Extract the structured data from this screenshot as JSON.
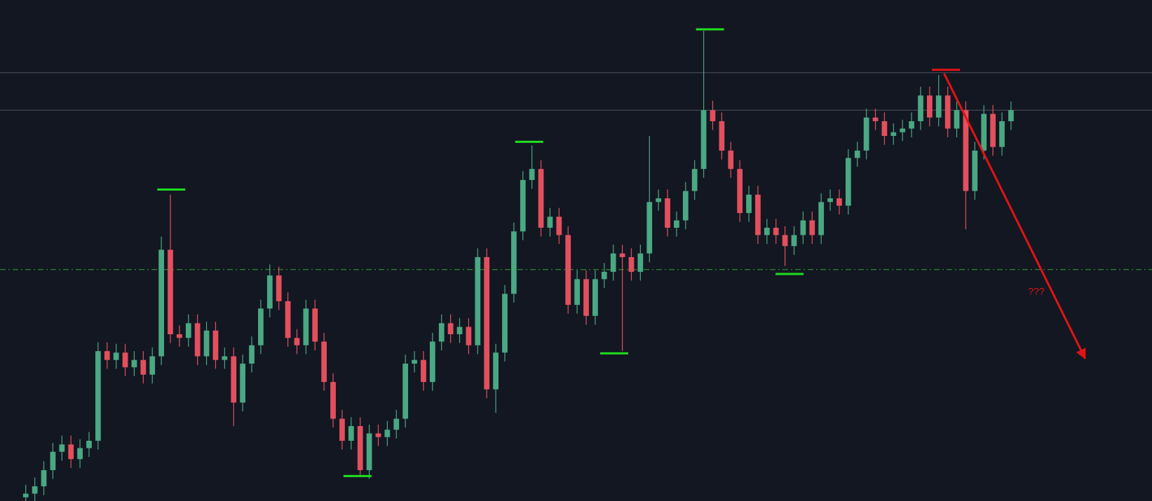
{
  "chart_data": {
    "type": "candlestick",
    "background": "#131722",
    "up_color": "#4aa883",
    "down_color": "#e2505e",
    "xlim": [
      -2.85,
      124.6
    ],
    "ylim": [
      0,
      682
    ],
    "open": [
      5,
      10,
      20,
      42,
      67,
      77,
      57,
      72,
      82,
      204,
      192,
      202,
      182,
      192,
      172,
      197,
      342,
      227,
      222,
      242,
      197,
      232,
      192,
      197,
      134,
      187,
      212,
      262,
      307,
      272,
      222,
      212,
      262,
      217,
      162,
      112,
      82,
      102,
      42,
      92,
      87,
      97,
      112,
      187,
      192,
      162,
      217,
      242,
      227,
      237,
      212,
      332,
      152,
      202,
      282,
      367,
      437,
      452,
      372,
      387,
      362,
      267,
      302,
      252,
      302,
      312,
      337,
      332,
      312,
      337,
      407,
      412,
      372,
      382,
      422,
      452,
      532,
      517,
      477,
      452,
      392,
      417,
      362,
      372,
      362,
      347,
      362,
      382,
      362,
      407,
      412,
      402,
      467,
      477,
      522,
      517,
      497,
      502,
      507,
      517,
      552,
      522,
      552,
      507,
      532,
      422,
      477,
      527,
      482,
      517
    ],
    "high": [
      22,
      32,
      54,
      79,
      89,
      89,
      84,
      94,
      216,
      216,
      214,
      214,
      204,
      204,
      209,
      360,
      417,
      239,
      254,
      254,
      244,
      244,
      209,
      209,
      199,
      224,
      274,
      322,
      319,
      284,
      234,
      274,
      274,
      229,
      174,
      124,
      114,
      114,
      104,
      104,
      109,
      124,
      199,
      204,
      204,
      229,
      254,
      254,
      249,
      249,
      344,
      344,
      214,
      294,
      379,
      449,
      484,
      464,
      399,
      399,
      374,
      314,
      314,
      314,
      324,
      349,
      349,
      344,
      349,
      497,
      424,
      424,
      394,
      434,
      464,
      640,
      545,
      529,
      489,
      464,
      429,
      429,
      384,
      384,
      374,
      374,
      394,
      394,
      419,
      424,
      424,
      479,
      489,
      534,
      534,
      529,
      514,
      519,
      529,
      564,
      564,
      580,
      564,
      544,
      544,
      489,
      539,
      539,
      529,
      544
    ],
    "low": [
      0,
      0,
      8,
      30,
      55,
      45,
      45,
      60,
      70,
      180,
      180,
      170,
      170,
      160,
      160,
      185,
      215,
      210,
      210,
      185,
      185,
      180,
      180,
      102,
      122,
      175,
      200,
      250,
      260,
      210,
      200,
      200,
      205,
      150,
      100,
      70,
      70,
      34,
      30,
      75,
      75,
      85,
      100,
      175,
      150,
      150,
      205,
      215,
      215,
      200,
      200,
      140,
      120,
      190,
      270,
      355,
      425,
      360,
      360,
      350,
      255,
      255,
      240,
      240,
      290,
      300,
      204,
      300,
      300,
      325,
      395,
      360,
      360,
      370,
      410,
      440,
      505,
      465,
      440,
      380,
      380,
      350,
      350,
      350,
      320,
      335,
      350,
      350,
      350,
      395,
      390,
      390,
      455,
      465,
      505,
      485,
      485,
      490,
      495,
      505,
      510,
      510,
      495,
      495,
      370,
      410,
      465,
      470,
      470,
      505
    ],
    "close": [
      10,
      20,
      42,
      67,
      77,
      57,
      72,
      82,
      204,
      192,
      202,
      182,
      192,
      172,
      197,
      342,
      227,
      222,
      242,
      197,
      232,
      192,
      197,
      134,
      187,
      212,
      262,
      307,
      272,
      222,
      212,
      262,
      217,
      162,
      112,
      82,
      102,
      42,
      92,
      87,
      97,
      112,
      187,
      192,
      162,
      217,
      242,
      227,
      237,
      212,
      332,
      152,
      202,
      282,
      367,
      437,
      452,
      372,
      387,
      362,
      267,
      302,
      252,
      302,
      312,
      337,
      332,
      312,
      337,
      407,
      412,
      372,
      382,
      422,
      452,
      532,
      517,
      477,
      452,
      392,
      417,
      362,
      372,
      362,
      347,
      362,
      382,
      362,
      407,
      412,
      402,
      467,
      477,
      522,
      517,
      497,
      502,
      507,
      517,
      552,
      522,
      552,
      507,
      532,
      422,
      477,
      527,
      482,
      517,
      532
    ],
    "levels": [
      {
        "value": 583,
        "color": "#50535e",
        "style": "solid"
      },
      {
        "value": 532,
        "color": "#50535e",
        "style": "solid"
      },
      {
        "value": 315,
        "color": "#2fa52f",
        "style": "dash-dot"
      }
    ],
    "markers": [
      {
        "x": 16.1,
        "value": 424,
        "color": "#1fe01f"
      },
      {
        "x": 36.7,
        "value": 34,
        "color": "#1fe01f"
      },
      {
        "x": 55.7,
        "value": 489,
        "color": "#1fe01f"
      },
      {
        "x": 65.1,
        "value": 201,
        "color": "#1fe01f"
      },
      {
        "x": 75.7,
        "value": 642,
        "color": "#1fe01f"
      },
      {
        "x": 84.5,
        "value": 309,
        "color": "#1fe01f"
      },
      {
        "x": 101.8,
        "value": 587,
        "color": "#e01414"
      }
    ],
    "arrow": {
      "x0": 101.6,
      "y0": 582,
      "x1": 117.2,
      "y1": 194,
      "color": "#e01414"
    },
    "annotation": {
      "text": "???",
      "color": "#e01414"
    }
  }
}
